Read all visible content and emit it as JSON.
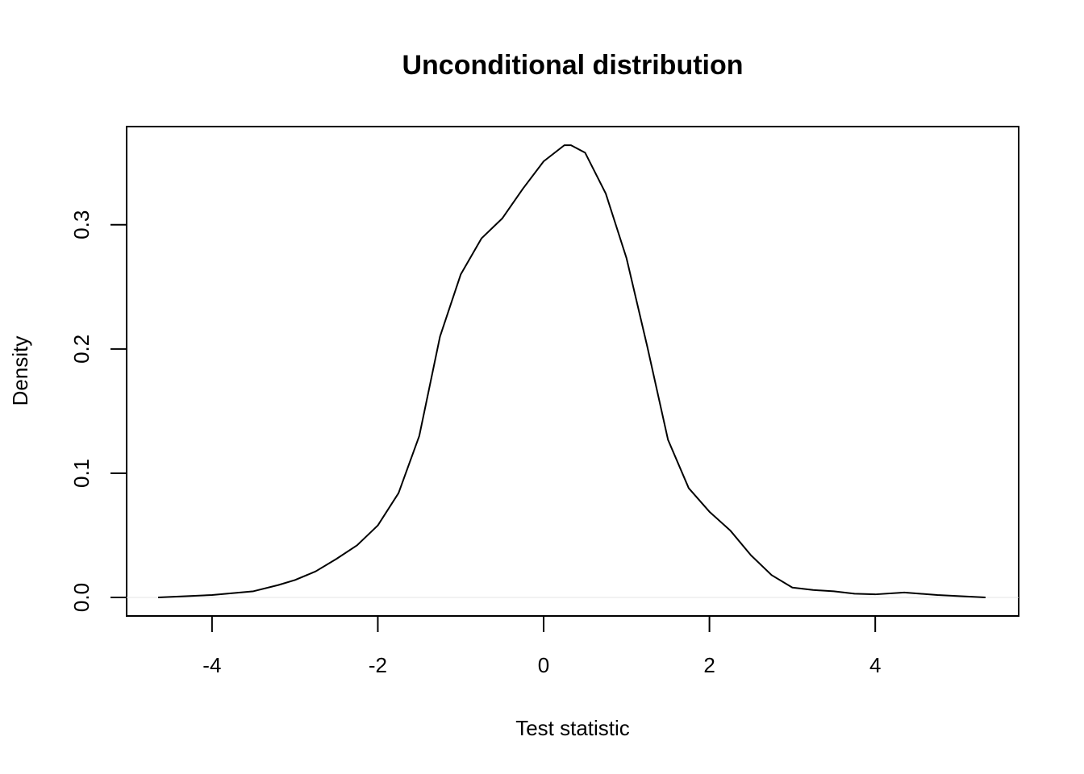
{
  "chart_data": {
    "type": "line",
    "title": "Unconditional distribution",
    "xlabel": "Test statistic",
    "ylabel": "Density",
    "x": [
      -4.65,
      -4.0,
      -3.5,
      -3.2,
      -3.0,
      -2.75,
      -2.5,
      -2.25,
      -2.0,
      -1.75,
      -1.5,
      -1.25,
      -1.0,
      -0.75,
      -0.5,
      -0.25,
      0,
      0.25,
      0.33,
      0.5,
      0.75,
      1.0,
      1.25,
      1.5,
      1.75,
      2.0,
      2.25,
      2.5,
      2.75,
      3.0,
      3.25,
      3.5,
      3.75,
      4.0,
      4.35,
      4.75,
      5.33
    ],
    "series": [
      {
        "name": "density",
        "color": "#000000",
        "values": [
          0.0,
          0.002,
          0.005,
          0.01,
          0.014,
          0.021,
          0.031,
          0.042,
          0.058,
          0.084,
          0.13,
          0.21,
          0.26,
          0.289,
          0.305,
          0.329,
          0.351,
          0.364,
          0.364,
          0.358,
          0.325,
          0.273,
          0.202,
          0.127,
          0.088,
          0.069,
          0.054,
          0.034,
          0.018,
          0.008,
          0.006,
          0.005,
          0.003,
          0.0025,
          0.004,
          0.002,
          0.0
        ]
      }
    ],
    "xlim": [
      -5.03,
      5.73
    ],
    "ylim": [
      -0.0149,
      0.379
    ],
    "xticks": [
      -4,
      -2,
      0,
      2,
      4
    ],
    "yticks": [
      {
        "value": 0,
        "label": "0.0"
      },
      0.1,
      0.2,
      0.3
    ]
  }
}
